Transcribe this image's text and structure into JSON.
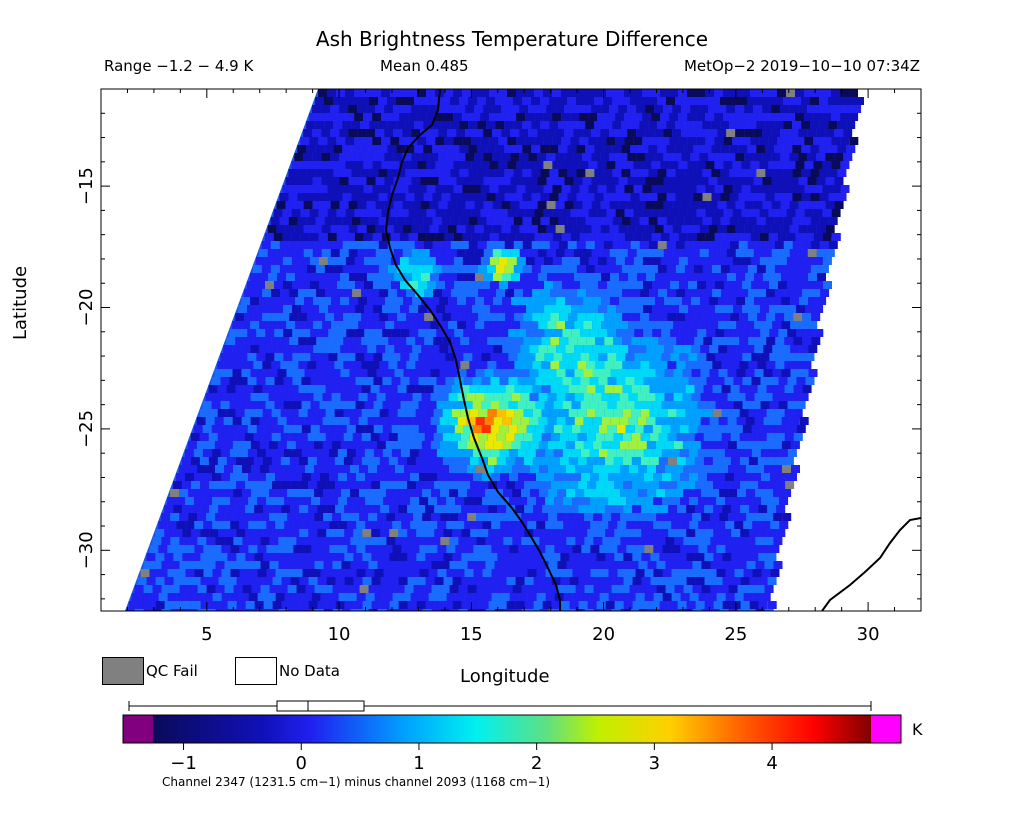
{
  "title": "Ash Brightness Temperature Difference",
  "stats": {
    "range": "Range −1.2 − 4.9 K",
    "mean": "Mean 0.485",
    "satellite_time": "MetOp−2 2019−10−10 07:34Z"
  },
  "axes": {
    "xlabel": "Longitude",
    "ylabel": "Latitude",
    "x_ticks": [
      "5",
      "10",
      "15",
      "20",
      "25",
      "30"
    ],
    "y_ticks": [
      "−15",
      "−20",
      "−25",
      "−30"
    ]
  },
  "legend": {
    "qc_fail": "QC Fail",
    "no_data": "No Data",
    "qc_color": "#808080",
    "nodata_color": "#ffffff"
  },
  "colorbar": {
    "unit": "K",
    "ticks": [
      "−1",
      "0",
      "1",
      "2",
      "3",
      "4"
    ],
    "below_color": "#800080",
    "above_color": "#ff00ff",
    "footnote": "Channel 2347 (1231.5 cm−1) minus channel 2093 (1168 cm−1)"
  },
  "chart_data": {
    "type": "heatmap",
    "xlim": [
      1,
      32
    ],
    "ylim": [
      -32.5,
      -11
    ],
    "value_range": [
      -1.2,
      4.9
    ],
    "mean": 0.485,
    "colorbar_range": [
      -1.2,
      4.9
    ],
    "boxplot_K": {
      "min": -1.2,
      "q1": -0.01,
      "median": 0.25,
      "q3": 0.7,
      "max": 4.9
    }
  }
}
